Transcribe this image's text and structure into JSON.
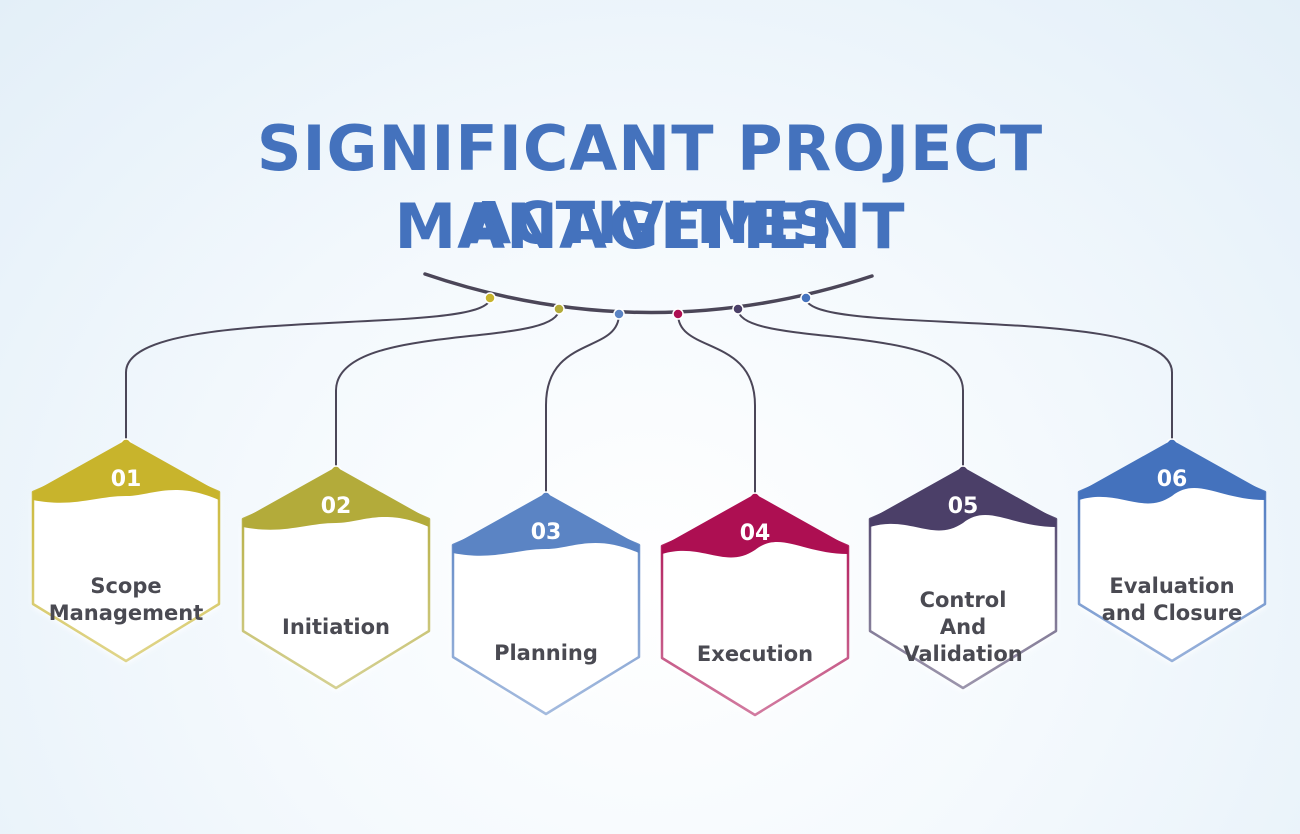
{
  "title": {
    "line1": "SIGNIFICANT PROJECT MANAGEMENT",
    "line2": "ACTIVITIES"
  },
  "colors": {
    "title": "#4472bd",
    "hub_line": "#4b4658",
    "label_text": "#4a4a52"
  },
  "activities": [
    {
      "number": "01",
      "label_lines": [
        "Scope",
        "Management"
      ],
      "color": "#c8b42c"
    },
    {
      "number": "02",
      "label_lines": [
        "Initiation"
      ],
      "color": "#b3ab3a"
    },
    {
      "number": "03",
      "label_lines": [
        "Planning"
      ],
      "color": "#5b84c4"
    },
    {
      "number": "04",
      "label_lines": [
        "Execution"
      ],
      "color": "#ad0f52"
    },
    {
      "number": "05",
      "label_lines": [
        "Control",
        "And",
        "Validation"
      ],
      "color": "#4b3f68"
    },
    {
      "number": "06",
      "label_lines": [
        "Evaluation",
        "and Closure"
      ],
      "color": "#4472bd"
    }
  ]
}
